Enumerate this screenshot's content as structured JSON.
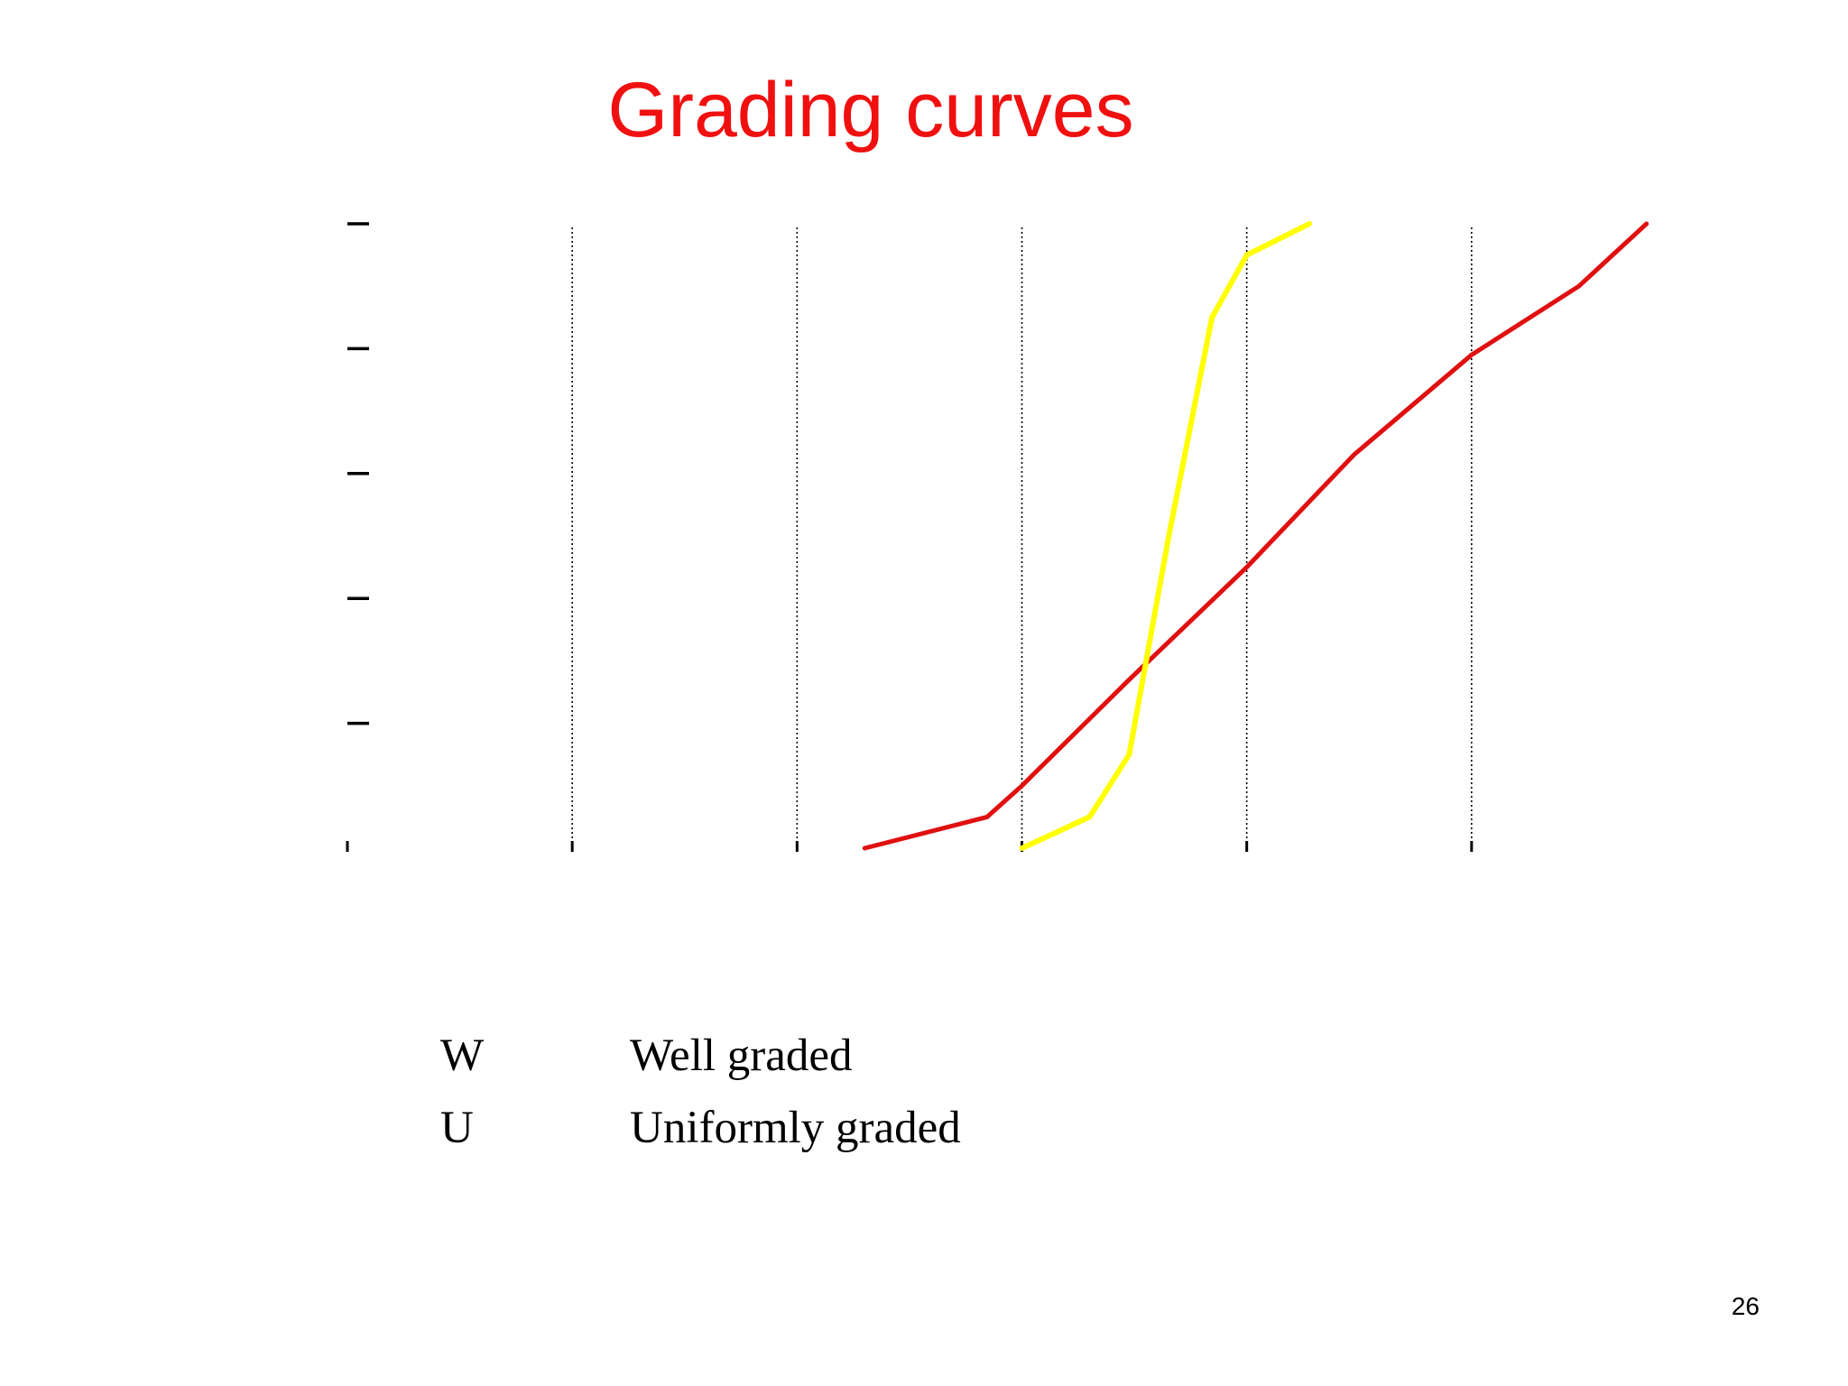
{
  "slide": {
    "title": "Grading curves",
    "page_number": "26"
  },
  "legend": [
    {
      "code": "W",
      "label": "Well graded"
    },
    {
      "code": "U",
      "label": "Uniformly graded"
    }
  ],
  "colors": {
    "title": "#f01010",
    "well_graded_curve": "#e01010",
    "uniformly_graded_curve": "#ffff00",
    "grid": "#000000",
    "background": "#ffffff"
  },
  "chart_data": {
    "type": "line",
    "title": "",
    "xlabel": "",
    "ylabel": "",
    "tick_labels_visible": false,
    "x_scale": "log",
    "xlim": [
      0.0001,
      100
    ],
    "ylim": [
      0,
      100
    ],
    "x_ticks": [
      0.0001,
      0.001,
      0.01,
      0.1,
      1,
      10
    ],
    "y_ticks": [
      0,
      20,
      40,
      60,
      80,
      100
    ],
    "vertical_grid": "dotted",
    "series": [
      {
        "code": "W",
        "color": "#e01010",
        "x": [
          0.02,
          0.07,
          0.1,
          0.3,
          1,
          3,
          10,
          30,
          60
        ],
        "y": [
          0,
          5,
          10,
          27,
          45,
          63,
          79,
          90,
          100
        ]
      },
      {
        "code": "U",
        "color": "#ffff00",
        "x": [
          0.1,
          0.2,
          0.3,
          0.45,
          0.7,
          1,
          1.9
        ],
        "y": [
          0,
          5,
          15,
          50,
          85,
          95,
          100
        ]
      }
    ]
  }
}
